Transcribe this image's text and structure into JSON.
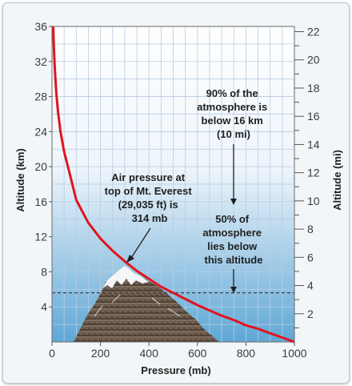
{
  "chart_data": {
    "type": "line",
    "xlabel": "Pressure (mb)",
    "ylabel_left": "Altitude (km)",
    "ylabel_right": "Altitude (mi)",
    "xlim": [
      0,
      1000
    ],
    "ylim_km": [
      0,
      36
    ],
    "ylim_mi": [
      0,
      22.37
    ],
    "x_ticks": [
      0,
      200,
      400,
      600,
      800,
      1000
    ],
    "y_ticks_km": [
      4,
      8,
      12,
      16,
      20,
      24,
      28,
      32,
      36
    ],
    "y_ticks_mi": [
      2,
      4,
      6,
      8,
      10,
      12,
      14,
      16,
      18,
      20,
      22
    ],
    "grid": true,
    "series": [
      {
        "x": [
          5,
          8,
          12,
          18,
          25,
          35,
          50,
          75,
          100,
          150,
          200,
          250,
          300,
          350,
          400,
          450,
          500,
          550,
          600,
          650,
          700,
          750,
          800,
          850,
          900,
          950,
          1000
        ],
        "y": [
          36,
          33.5,
          31,
          28.3,
          26.2,
          24,
          21.7,
          19,
          16.2,
          13.6,
          11.8,
          10.4,
          9.2,
          8.1,
          7.2,
          6.3,
          5.6,
          4.9,
          4.2,
          3.6,
          3.0,
          2.5,
          1.9,
          1.5,
          1.0,
          0.5,
          0.0
        ],
        "color": "#e0141e"
      }
    ],
    "reference_line": {
      "y_km": 5.6,
      "style": "dashed"
    },
    "annotations": [
      {
        "text": [
          "90% of the",
          "atmosphere is",
          "below 16 km",
          "(10 mi)"
        ]
      },
      {
        "text": [
          "Air pressure at",
          "top of Mt. Everest",
          "(29,035 ft) is",
          "314 mb"
        ]
      },
      {
        "text": [
          "50% of",
          "atmosphere",
          "lies below",
          "this altitude"
        ]
      }
    ]
  },
  "colors": {
    "curve": "#e0141e",
    "sky_top": "#ffffff",
    "sky_bottom": "#5fa7d6",
    "grid": "#b8cde0"
  }
}
